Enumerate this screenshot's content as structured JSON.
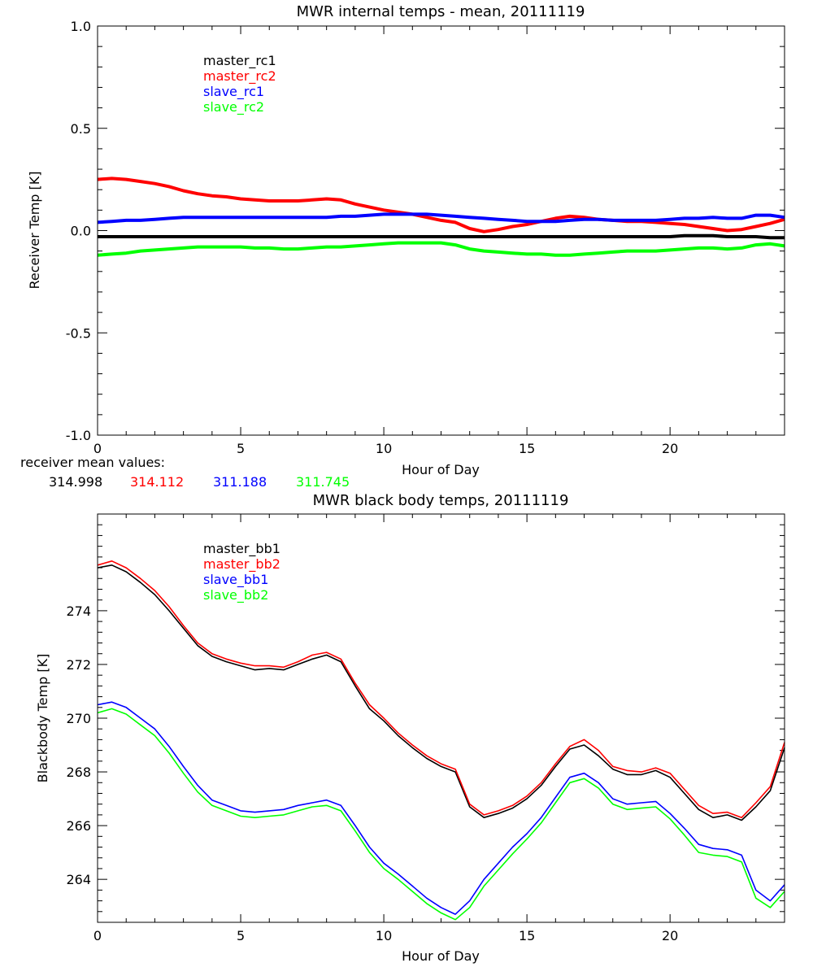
{
  "chart_data": [
    {
      "type": "line",
      "title": "MWR internal temps - mean, 20111119",
      "xlabel": "Hour of Day",
      "ylabel": "Receiver Temp [K]",
      "xlim": [
        0,
        24
      ],
      "ylim": [
        -1.0,
        1.0
      ],
      "xticks": [
        "0",
        "5",
        "10",
        "15",
        "20"
      ],
      "yticks": [
        "-1.0",
        "-0.5",
        "0.0",
        "0.5",
        "1.0"
      ],
      "grid": false,
      "legend_position": "upper-left",
      "x": [
        0,
        0.5,
        1,
        1.5,
        2,
        2.5,
        3,
        3.5,
        4,
        4.5,
        5,
        5.5,
        6,
        6.5,
        7,
        7.5,
        8,
        8.5,
        9,
        9.5,
        10,
        10.5,
        11,
        11.5,
        12,
        12.5,
        13,
        13.5,
        14,
        14.5,
        15,
        15.5,
        16,
        16.5,
        17,
        17.5,
        18,
        18.5,
        19,
        19.5,
        20,
        20.5,
        21,
        21.5,
        22,
        22.5,
        23,
        23.5,
        24
      ],
      "series": [
        {
          "name": "master_rc1",
          "color": "#000000",
          "values": [
            -0.03,
            -0.03,
            -0.03,
            -0.03,
            -0.03,
            -0.03,
            -0.03,
            -0.03,
            -0.03,
            -0.03,
            -0.03,
            -0.03,
            -0.03,
            -0.03,
            -0.03,
            -0.03,
            -0.03,
            -0.03,
            -0.03,
            -0.03,
            -0.03,
            -0.03,
            -0.03,
            -0.03,
            -0.03,
            -0.03,
            -0.03,
            -0.03,
            -0.03,
            -0.03,
            -0.03,
            -0.03,
            -0.03,
            -0.03,
            -0.03,
            -0.03,
            -0.03,
            -0.03,
            -0.03,
            -0.03,
            -0.03,
            -0.025,
            -0.025,
            -0.025,
            -0.03,
            -0.03,
            -0.03,
            -0.035,
            -0.035
          ]
        },
        {
          "name": "master_rc2",
          "color": "#ff0000",
          "values": [
            0.25,
            0.255,
            0.25,
            0.24,
            0.23,
            0.215,
            0.195,
            0.18,
            0.17,
            0.165,
            0.155,
            0.15,
            0.145,
            0.145,
            0.145,
            0.15,
            0.155,
            0.15,
            0.13,
            0.115,
            0.1,
            0.09,
            0.08,
            0.065,
            0.05,
            0.04,
            0.01,
            -0.005,
            0.005,
            0.02,
            0.03,
            0.045,
            0.06,
            0.07,
            0.065,
            0.055,
            0.05,
            0.045,
            0.045,
            0.04,
            0.035,
            0.03,
            0.02,
            0.01,
            0.0,
            0.005,
            0.02,
            0.035,
            0.055
          ]
        },
        {
          "name": "slave_rc1",
          "color": "#0000ff",
          "values": [
            0.04,
            0.045,
            0.05,
            0.05,
            0.055,
            0.06,
            0.065,
            0.065,
            0.065,
            0.065,
            0.065,
            0.065,
            0.065,
            0.065,
            0.065,
            0.065,
            0.065,
            0.07,
            0.07,
            0.075,
            0.08,
            0.08,
            0.08,
            0.08,
            0.075,
            0.07,
            0.065,
            0.06,
            0.055,
            0.05,
            0.045,
            0.045,
            0.045,
            0.05,
            0.055,
            0.055,
            0.05,
            0.05,
            0.05,
            0.05,
            0.055,
            0.06,
            0.06,
            0.065,
            0.06,
            0.06,
            0.075,
            0.075,
            0.065
          ]
        },
        {
          "name": "slave_rc2",
          "color": "#00ff00",
          "values": [
            -0.12,
            -0.115,
            -0.11,
            -0.1,
            -0.095,
            -0.09,
            -0.085,
            -0.08,
            -0.08,
            -0.08,
            -0.08,
            -0.085,
            -0.085,
            -0.09,
            -0.09,
            -0.085,
            -0.08,
            -0.08,
            -0.075,
            -0.07,
            -0.065,
            -0.06,
            -0.06,
            -0.06,
            -0.06,
            -0.07,
            -0.09,
            -0.1,
            -0.105,
            -0.11,
            -0.115,
            -0.115,
            -0.12,
            -0.12,
            -0.115,
            -0.11,
            -0.105,
            -0.1,
            -0.1,
            -0.1,
            -0.095,
            -0.09,
            -0.085,
            -0.085,
            -0.09,
            -0.085,
            -0.07,
            -0.065,
            -0.075
          ]
        }
      ],
      "footnote": {
        "label": "receiver mean values:",
        "values": [
          {
            "text": "314.998",
            "color": "#000000"
          },
          {
            "text": "314.112",
            "color": "#ff0000"
          },
          {
            "text": "311.188",
            "color": "#0000ff"
          },
          {
            "text": "311.745",
            "color": "#00ff00"
          }
        ]
      }
    },
    {
      "type": "line",
      "title": "MWR black body temps, 20111119",
      "xlabel": "Hour of Day",
      "ylabel": "Blackbody Temp [K]",
      "xlim": [
        0,
        24
      ],
      "ylim": [
        262.4,
        277.6
      ],
      "xticks": [
        "0",
        "5",
        "10",
        "15",
        "20"
      ],
      "yticks": [
        "264",
        "266",
        "268",
        "270",
        "272",
        "274"
      ],
      "grid": false,
      "legend_position": "upper-left",
      "x": [
        0,
        0.5,
        1,
        1.5,
        2,
        2.5,
        3,
        3.5,
        4,
        4.5,
        5,
        5.5,
        6,
        6.5,
        7,
        7.5,
        8,
        8.5,
        9,
        9.5,
        10,
        10.5,
        11,
        11.5,
        12,
        12.5,
        13,
        13.5,
        14,
        14.5,
        15,
        15.5,
        16,
        16.5,
        17,
        17.5,
        18,
        18.5,
        19,
        19.5,
        20,
        20.5,
        21,
        21.5,
        22,
        22.5,
        23,
        23.5,
        24
      ],
      "series": [
        {
          "name": "master_bb1",
          "color": "#000000",
          "values": [
            275.6,
            275.7,
            275.45,
            275.05,
            274.6,
            274.0,
            273.35,
            272.7,
            272.3,
            272.1,
            271.95,
            271.8,
            271.85,
            271.8,
            272.0,
            272.2,
            272.35,
            272.1,
            271.2,
            270.35,
            269.9,
            269.35,
            268.9,
            268.5,
            268.2,
            268.0,
            266.7,
            266.3,
            266.45,
            266.65,
            267.0,
            267.5,
            268.2,
            268.85,
            269.0,
            268.6,
            268.1,
            267.9,
            267.9,
            268.05,
            267.8,
            267.2,
            266.6,
            266.3,
            266.4,
            266.2,
            266.7,
            267.3,
            268.9
          ]
        },
        {
          "name": "master_bb2",
          "color": "#ff0000",
          "values": [
            275.7,
            275.85,
            275.6,
            275.2,
            274.75,
            274.15,
            273.45,
            272.8,
            272.4,
            272.2,
            272.05,
            271.95,
            271.95,
            271.9,
            272.1,
            272.35,
            272.45,
            272.2,
            271.3,
            270.5,
            270.0,
            269.45,
            269.0,
            268.6,
            268.3,
            268.1,
            266.8,
            266.4,
            266.55,
            266.75,
            267.1,
            267.6,
            268.3,
            268.95,
            269.2,
            268.8,
            268.2,
            268.05,
            268.0,
            268.15,
            267.95,
            267.35,
            266.75,
            266.45,
            266.5,
            266.3,
            266.85,
            267.45,
            269.1
          ]
        },
        {
          "name": "slave_bb1",
          "color": "#0000ff",
          "values": [
            270.5,
            270.6,
            270.4,
            270.0,
            269.6,
            268.95,
            268.2,
            267.5,
            266.95,
            266.75,
            266.55,
            266.5,
            266.55,
            266.6,
            266.75,
            266.85,
            266.95,
            266.75,
            266.0,
            265.2,
            264.6,
            264.2,
            263.75,
            263.3,
            262.95,
            262.7,
            263.2,
            264.0,
            264.6,
            265.2,
            265.7,
            266.3,
            267.05,
            267.8,
            267.95,
            267.6,
            267.0,
            266.8,
            266.85,
            266.9,
            266.45,
            265.9,
            265.3,
            265.15,
            265.1,
            264.9,
            263.6,
            263.2,
            263.8
          ]
        },
        {
          "name": "slave_bb2",
          "color": "#00ff00",
          "values": [
            270.2,
            270.35,
            270.15,
            269.75,
            269.35,
            268.7,
            267.95,
            267.25,
            266.75,
            266.55,
            266.35,
            266.3,
            266.35,
            266.4,
            266.55,
            266.7,
            266.75,
            266.55,
            265.8,
            265.0,
            264.4,
            264.0,
            263.55,
            263.1,
            262.75,
            262.5,
            262.95,
            263.75,
            264.35,
            264.95,
            265.5,
            266.1,
            266.85,
            267.6,
            267.75,
            267.4,
            266.8,
            266.6,
            266.65,
            266.7,
            266.25,
            265.65,
            265.0,
            264.9,
            264.85,
            264.65,
            263.3,
            262.95,
            263.55
          ]
        }
      ]
    }
  ]
}
